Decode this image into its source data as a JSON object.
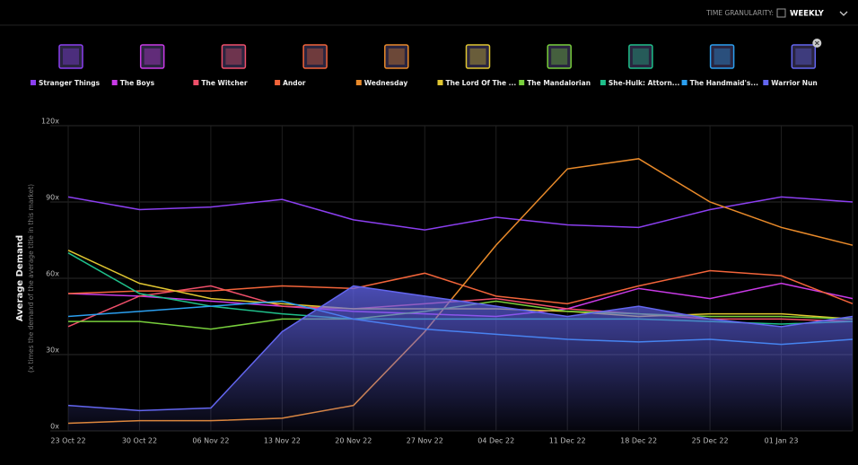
{
  "time_granularity_label": "TIME GRANULARITY:",
  "time_granularity_value": "WEEKLY",
  "chart_data": {
    "type": "line",
    "y_label": "Average Demand",
    "y_sublabel": "(x times the demand of the average title in this market)",
    "categories": [
      "23 Oct 22",
      "30 Oct 22",
      "06 Nov 22",
      "13 Nov 22",
      "20 Nov 22",
      "27 Nov 22",
      "04 Dec 22",
      "11 Dec 22",
      "18 Dec 22",
      "25 Dec 22",
      "01 Jan 23",
      null
    ],
    "ylim": [
      0,
      120
    ],
    "yticks": [
      {
        "value": 0,
        "label": "0x"
      },
      {
        "value": 30,
        "label": "30x"
      },
      {
        "value": 60,
        "label": "60x"
      },
      {
        "value": 90,
        "label": "90x"
      },
      {
        "value": 120,
        "label": "120x"
      }
    ],
    "grid": true,
    "series": [
      {
        "name": "Stranger Things",
        "color": "#8b3ff0",
        "values": [
          92,
          87,
          88,
          91,
          83,
          79,
          84,
          81,
          80,
          87,
          92,
          90
        ]
      },
      {
        "name": "The Boys",
        "color": "#c93ae6",
        "values": [
          54,
          53,
          51,
          49,
          47,
          46,
          45,
          48,
          56,
          52,
          58,
          52
        ]
      },
      {
        "name": "The Witcher",
        "color": "#ef4f6a",
        "values": [
          41,
          53,
          57,
          49,
          48,
          50,
          52,
          48,
          46,
          44,
          44,
          43
        ]
      },
      {
        "name": "Andor",
        "color": "#f2643a",
        "values": [
          54,
          55,
          55,
          57,
          56,
          62,
          53,
          50,
          57,
          63,
          61,
          50
        ]
      },
      {
        "name": "Wednesday",
        "color": "#e98a2a",
        "values": [
          3,
          4,
          4,
          5,
          10,
          39,
          73,
          103,
          107,
          90,
          80,
          73
        ]
      },
      {
        "name": "The Lord Of The ...",
        "color": "#e0c631",
        "values": [
          71,
          58,
          52,
          50,
          48,
          48,
          48,
          47,
          45,
          46,
          46,
          44
        ]
      },
      {
        "name": "The Mandalorian",
        "color": "#78cf3c",
        "values": [
          43,
          43,
          40,
          44,
          44,
          47,
          51,
          47,
          46,
          45,
          45,
          44
        ]
      },
      {
        "name": "She-Hulk: Attorn...",
        "color": "#1fbf8a",
        "values": [
          70,
          54,
          49,
          46,
          44,
          44,
          44,
          44,
          44,
          43,
          42,
          43
        ]
      },
      {
        "name": "The Handmaid's...",
        "color": "#2b9fef",
        "values": [
          45,
          47,
          49,
          51,
          44,
          40,
          38,
          36,
          35,
          36,
          34,
          36
        ]
      },
      {
        "name": "Warrior Nun",
        "color": "#6366f0",
        "fill_area": true,
        "values": [
          10,
          8,
          9,
          39,
          57,
          53,
          49,
          45,
          49,
          44,
          41,
          45
        ]
      }
    ]
  }
}
